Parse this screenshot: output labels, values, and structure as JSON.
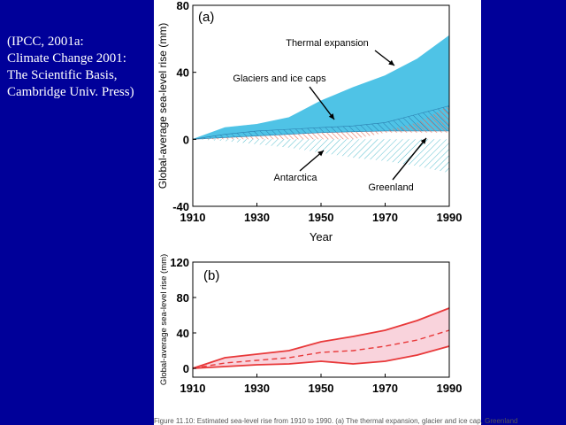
{
  "citation": [
    "(IPCC, 2001a:",
    "Climate Change 2001:",
    "The Scientific Basis,",
    "Cambridge Univ. Press)"
  ],
  "caption": "Figure 11.10: Estimated sea-level rise from 1910 to 1990. (a) The thermal expansion, glacier and ice cap, Greenland",
  "colors": {
    "background": "#000099",
    "thermal": "#4fc3e6",
    "greenland": "#e8705a",
    "antarctica": "#5bc0cf",
    "total": "#e8393a",
    "total_fill": "#f9d3dc"
  },
  "chart_data": [
    {
      "type": "area",
      "panel_label": "(a)",
      "xlabel": "Year",
      "ylabel": "Global-average sea-level rise (mm)",
      "xlim": [
        1910,
        1990
      ],
      "ylim": [
        -40,
        80
      ],
      "xticks": [
        1910,
        1930,
        1950,
        1970,
        1990
      ],
      "yticks": [
        -40,
        0,
        40,
        80
      ],
      "x": [
        1910,
        1920,
        1930,
        1940,
        1950,
        1960,
        1970,
        1980,
        1990
      ],
      "series": [
        {
          "name": "Thermal expansion",
          "lower": [
            0,
            3,
            5,
            6,
            7,
            8,
            10,
            15,
            20
          ],
          "upper": [
            0,
            7,
            9,
            13,
            23,
            31,
            38,
            48,
            62
          ]
        },
        {
          "name": "Glaciers and ice caps",
          "lower": [
            0,
            1,
            2,
            3,
            4,
            4.5,
            5,
            5,
            5
          ],
          "upper": [
            0,
            3,
            5,
            6,
            7,
            8,
            10,
            15,
            20
          ]
        },
        {
          "name": "Greenland",
          "lower": [
            0,
            0,
            0,
            0,
            0,
            0,
            4,
            4,
            4
          ],
          "upper": [
            0,
            1,
            2,
            3,
            4,
            4.5,
            5,
            10,
            20
          ]
        },
        {
          "name": "Antarctica",
          "lower": [
            0,
            -1,
            -3,
            -5,
            -8,
            -11,
            -13,
            -16,
            -20
          ],
          "upper": [
            0,
            0,
            0,
            0,
            0,
            0,
            0,
            0,
            0
          ]
        }
      ]
    },
    {
      "type": "line",
      "panel_label": "(b)",
      "xlabel": "",
      "ylabel": "Global-average sea-level rise (mm)",
      "xlim": [
        1910,
        1990
      ],
      "ylim": [
        -10,
        120
      ],
      "xticks": [
        1910,
        1930,
        1950,
        1970,
        1990
      ],
      "yticks": [
        0,
        40,
        80,
        120
      ],
      "x": [
        1910,
        1920,
        1930,
        1940,
        1950,
        1960,
        1970,
        1980,
        1990
      ],
      "upper": [
        0,
        12,
        16,
        20,
        30,
        36,
        43,
        54,
        68
      ],
      "central": [
        0,
        6,
        9,
        12,
        18,
        20,
        25,
        32,
        43
      ],
      "lower": [
        0,
        2,
        4,
        5,
        8,
        5,
        8,
        15,
        25
      ]
    }
  ]
}
